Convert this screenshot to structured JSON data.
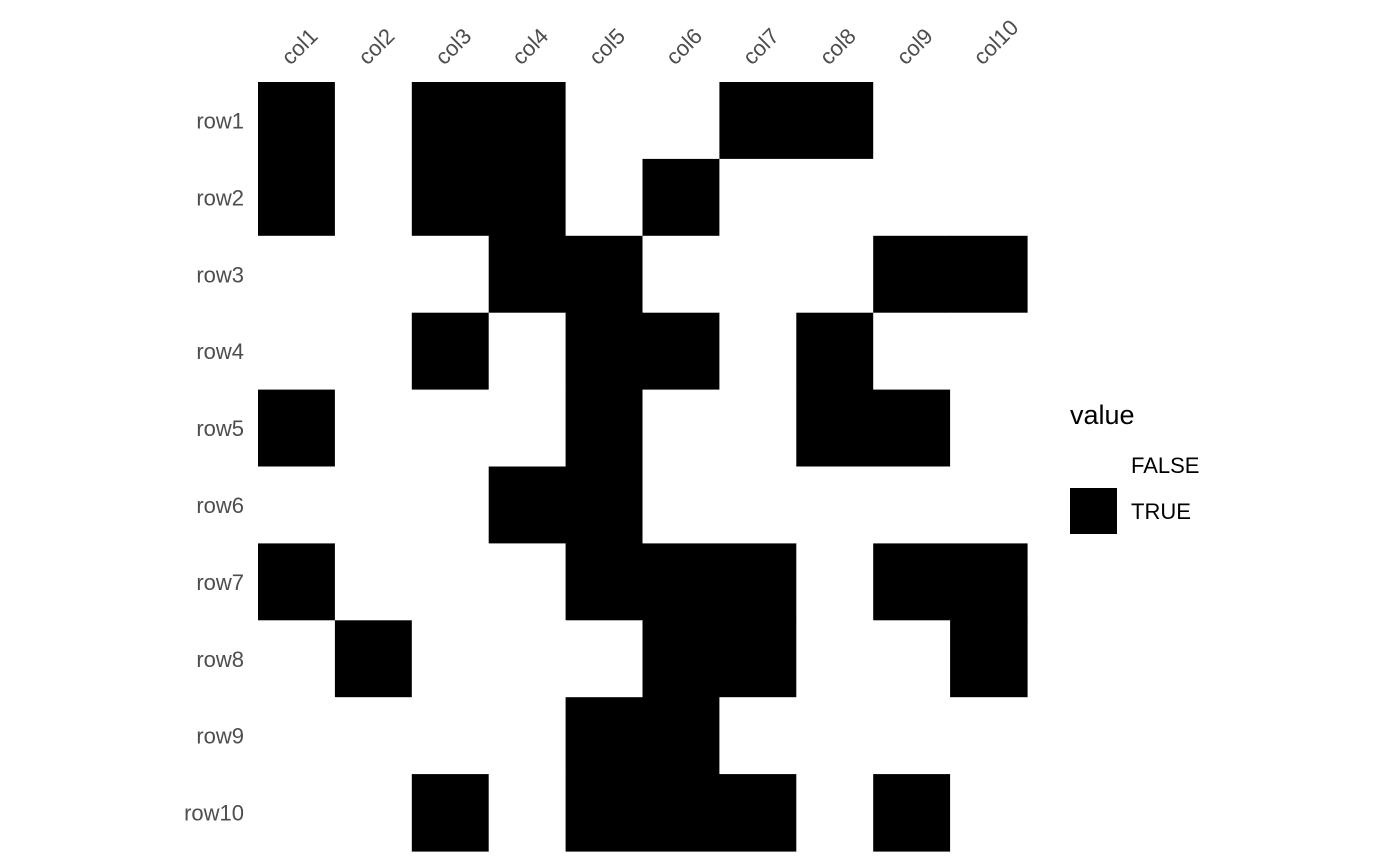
{
  "chart_data": {
    "type": "heatmap",
    "title": "",
    "xlabel": "",
    "ylabel": "",
    "x_categories": [
      "col1",
      "col2",
      "col3",
      "col4",
      "col5",
      "col6",
      "col7",
      "col8",
      "col9",
      "col10"
    ],
    "y_categories": [
      "row1",
      "row2",
      "row3",
      "row4",
      "row5",
      "row6",
      "row7",
      "row8",
      "row9",
      "row10"
    ],
    "values": [
      [
        true,
        false,
        true,
        true,
        false,
        false,
        true,
        true,
        false,
        false
      ],
      [
        true,
        false,
        true,
        true,
        false,
        true,
        false,
        false,
        false,
        false
      ],
      [
        false,
        false,
        false,
        true,
        true,
        false,
        false,
        false,
        true,
        true
      ],
      [
        false,
        false,
        true,
        false,
        true,
        true,
        false,
        true,
        false,
        false
      ],
      [
        true,
        false,
        false,
        false,
        true,
        false,
        false,
        true,
        true,
        false
      ],
      [
        false,
        false,
        false,
        true,
        true,
        false,
        false,
        false,
        false,
        false
      ],
      [
        true,
        false,
        false,
        false,
        true,
        true,
        true,
        false,
        true,
        true
      ],
      [
        false,
        true,
        false,
        false,
        false,
        true,
        true,
        false,
        false,
        true
      ],
      [
        false,
        false,
        false,
        false,
        true,
        true,
        false,
        false,
        false,
        false
      ],
      [
        false,
        false,
        true,
        false,
        true,
        true,
        true,
        false,
        true,
        false
      ]
    ],
    "grid": false,
    "legend": {
      "title": "value",
      "position": "right",
      "entries": [
        {
          "label": "FALSE",
          "color": "#ffffff"
        },
        {
          "label": "TRUE",
          "color": "#000000"
        }
      ]
    },
    "colors": {
      "true": "#000000",
      "false": "#ffffff"
    }
  }
}
